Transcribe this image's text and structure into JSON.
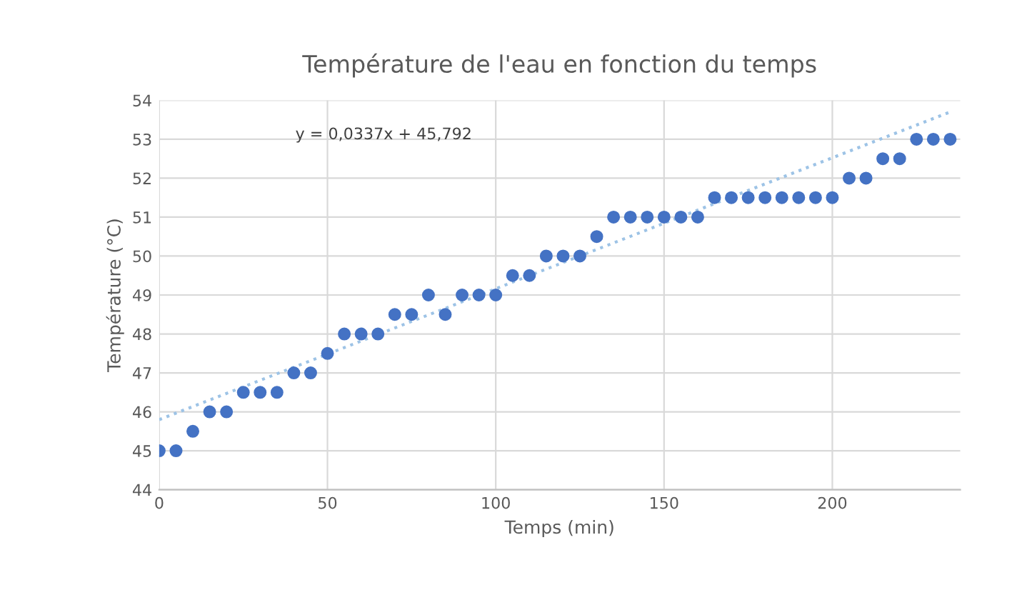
{
  "chart_data": {
    "type": "scatter",
    "title": "Température de l'eau en fonction du temps",
    "xlabel": "Temps (min)",
    "ylabel": "Température (°C)",
    "annotations": [
      "y = 0,0337x + 45,792"
    ],
    "series": [
      {
        "color": "#4472c4",
        "marker": "circle",
        "x": [
          0,
          5,
          10,
          15,
          20,
          25,
          30,
          35,
          40,
          45,
          50,
          55,
          60,
          65,
          70,
          75,
          80,
          85,
          90,
          95,
          100,
          105,
          110,
          115,
          120,
          125,
          130,
          135,
          140,
          145,
          150,
          155,
          160,
          165,
          170,
          175,
          180,
          185,
          190,
          195,
          200,
          205,
          210,
          215,
          220,
          225,
          230,
          235
        ],
        "values": [
          45,
          45,
          45.5,
          46,
          46,
          46.5,
          46.5,
          46.5,
          47,
          47,
          47.5,
          48,
          48,
          48,
          48.5,
          48.5,
          49,
          48.5,
          49,
          49,
          49,
          49.5,
          49.5,
          50,
          50,
          50,
          50.5,
          51,
          51,
          51,
          51,
          51,
          51,
          51.5,
          51.5,
          51.5,
          51.5,
          51.5,
          51.5,
          51.5,
          51.5,
          52,
          52,
          52.5,
          52.5,
          53,
          53,
          53
        ]
      },
      {
        "type": "line",
        "color": "#9dc3e6",
        "line_style": "dotted",
        "x": [
          0,
          235
        ],
        "values": [
          45.8,
          53.7
        ]
      }
    ],
    "xlim": [
      0,
      238
    ],
    "xticks": [
      0,
      50,
      100,
      150,
      200
    ],
    "ylim": [
      44,
      54
    ],
    "yticks": [
      44,
      45,
      46,
      47,
      48,
      49,
      50,
      51,
      52,
      53,
      54
    ],
    "grid": true,
    "legend": false
  }
}
